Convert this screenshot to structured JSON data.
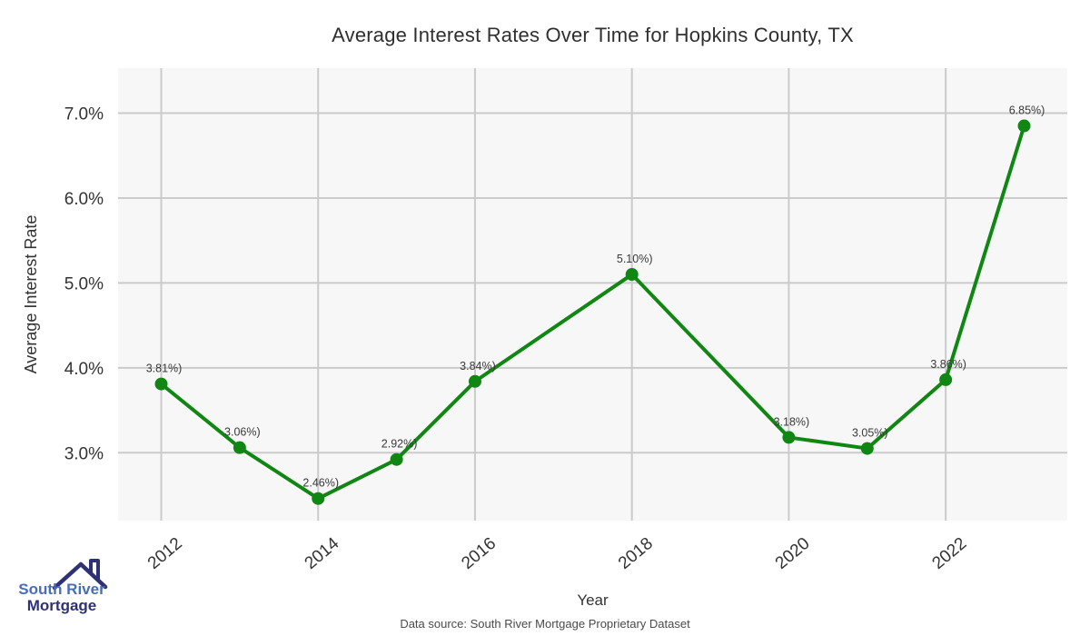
{
  "title": "Average Interest Rates Over Time for Hopkins County, TX",
  "footer": {
    "source": "Data source: South River Mortgage Proprietary Dataset"
  },
  "logo": {
    "line1": "South River",
    "line2": "Mortgage",
    "icon": "house-roof-icon"
  },
  "colors": {
    "line": "#108712",
    "marker": "#108712",
    "grid": "#cbcbcb",
    "panel_bg": "#f7f7f7",
    "title_text": "#2f2f2f",
    "tick_text": "#333333",
    "point_label_text": "#3a3a3a",
    "source_text": "#4a4a4a",
    "logo_blue": "#4a6db8",
    "logo_navy": "#2e3274"
  },
  "chart_data": {
    "type": "line",
    "title": "Average Interest Rates Over Time for Hopkins County, TX",
    "xlabel": "Year",
    "ylabel": "Average Interest Rate",
    "x": [
      2012,
      2013,
      2014,
      2015,
      2016,
      2018,
      2020,
      2021,
      2022,
      2023
    ],
    "values": [
      3.81,
      3.06,
      2.46,
      2.92,
      3.84,
      5.1,
      3.18,
      3.05,
      3.86,
      6.85
    ],
    "point_labels": [
      "3.81%)",
      "3.06%)",
      "2.46%)",
      "2.92%)",
      "3.84%)",
      "5.10%)",
      "3.18%)",
      "3.05%)",
      "3.86%)",
      "6.85%)"
    ],
    "x_ticks": [
      2012,
      2014,
      2016,
      2018,
      2020,
      2022
    ],
    "x_tick_labels": [
      "2012",
      "2014",
      "2016",
      "2018",
      "2020",
      "2022"
    ],
    "y_ticks": [
      3.0,
      4.0,
      5.0,
      6.0,
      7.0
    ],
    "y_tick_labels": [
      "3.0%",
      "4.0%",
      "5.0%",
      "6.0%",
      "7.0%"
    ],
    "x_range": [
      2011.45,
      2023.55
    ],
    "y_range": [
      2.2,
      7.53
    ],
    "grid": true,
    "legend": "none",
    "line_color": "#108712"
  }
}
